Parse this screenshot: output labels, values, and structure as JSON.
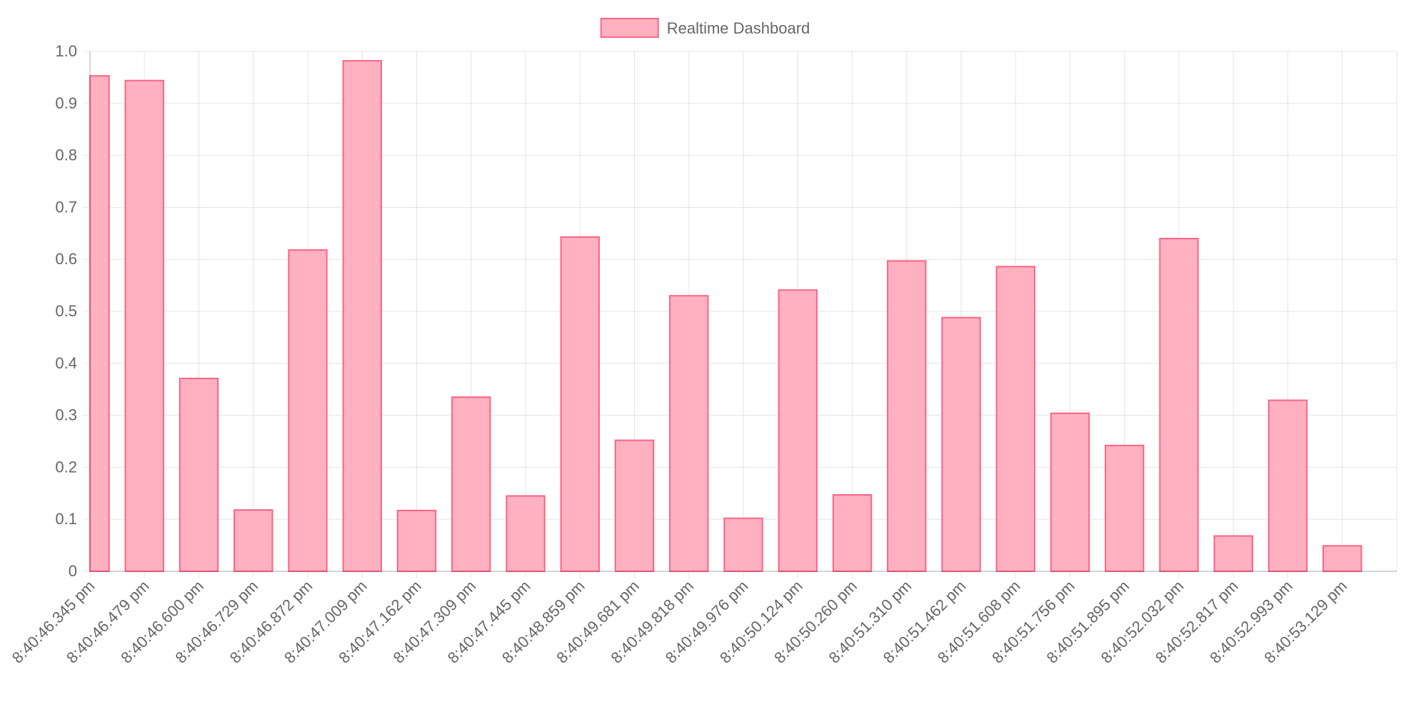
{
  "chart_data": {
    "type": "bar",
    "title": "",
    "xlabel": "",
    "ylabel": "",
    "ylim": [
      0,
      1.0
    ],
    "y_ticks": [
      "0",
      "0.1",
      "0.2",
      "0.3",
      "0.4",
      "0.5",
      "0.6",
      "0.7",
      "0.8",
      "0.9",
      "1.0"
    ],
    "grid": true,
    "legend_position": "top-center",
    "categories": [
      "8:40:46.345 pm",
      "8:40:46.479 pm",
      "8:40:46.600 pm",
      "8:40:46.729 pm",
      "8:40:46.872 pm",
      "8:40:47.009 pm",
      "8:40:47.162 pm",
      "8:40:47.309 pm",
      "8:40:47.445 pm",
      "8:40:48.859 pm",
      "8:40:49.681 pm",
      "8:40:49.818 pm",
      "8:40:49.976 pm",
      "8:40:50.124 pm",
      "8:40:50.260 pm",
      "8:40:51.310 pm",
      "8:40:51.462 pm",
      "8:40:51.608 pm",
      "8:40:51.756 pm",
      "8:40:51.895 pm",
      "8:40:52.032 pm",
      "8:40:52.817 pm",
      "8:40:52.993 pm",
      "8:40:53.129 pm"
    ],
    "series": [
      {
        "name": "Realtime Dashboard",
        "fill_color": "#ffb1c1",
        "border_color": "#ff6384",
        "values": [
          0.953,
          0.944,
          0.371,
          0.118,
          0.618,
          0.982,
          0.117,
          0.335,
          0.145,
          0.643,
          0.252,
          0.53,
          0.102,
          0.541,
          0.147,
          0.597,
          0.488,
          0.586,
          0.304,
          0.242,
          0.64,
          0.068,
          0.329,
          0.049
        ]
      }
    ]
  }
}
